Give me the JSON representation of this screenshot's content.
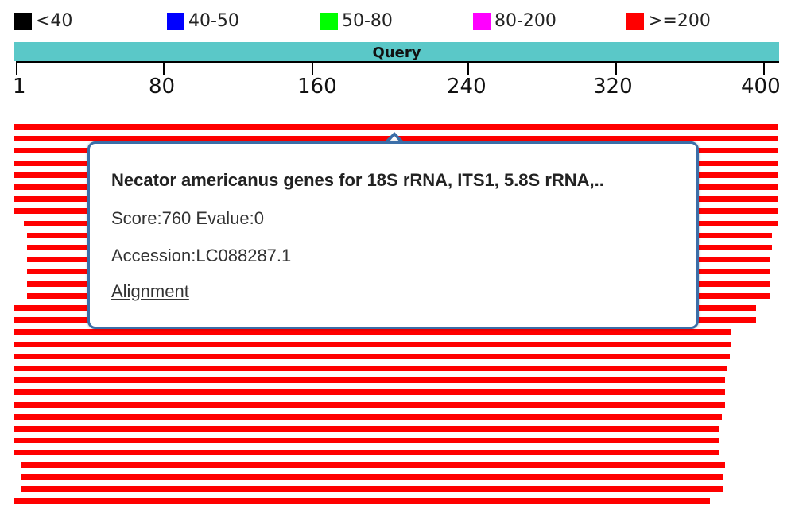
{
  "legend": [
    {
      "label": "<40",
      "color": "#000000"
    },
    {
      "label": "40-50",
      "color": "#0000ff"
    },
    {
      "label": "50-80",
      "color": "#00ff00"
    },
    {
      "label": "80-200",
      "color": "#ff00ff"
    },
    {
      "label": ">=200",
      "color": "#ff0000"
    }
  ],
  "query": {
    "label": "Query",
    "color": "#5ac8c8"
  },
  "axis": {
    "ticks": [
      "1",
      "80",
      "160",
      "240",
      "320",
      "400"
    ]
  },
  "hits": {
    "color": "#ff0000"
  },
  "tooltip": {
    "title": "Necator americanus genes for 18S rRNA, ITS1, 5.8S rRNA,..",
    "score_line": "Score:760 Evalue:0",
    "accession_line": "Accession:LC088287.1",
    "alignment_link": "Alignment"
  }
}
